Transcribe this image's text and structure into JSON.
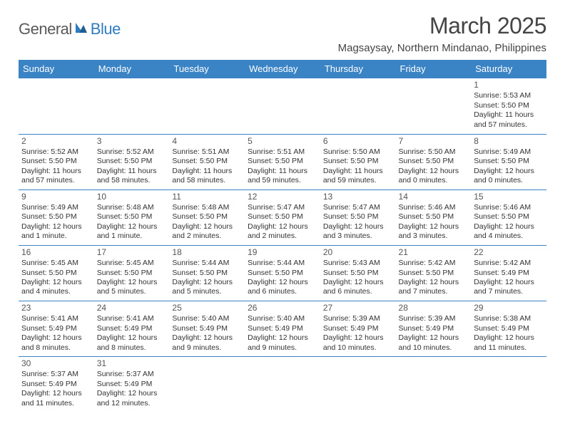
{
  "logo": {
    "part1": "General",
    "part2": "Blue"
  },
  "title": "March 2025",
  "location": "Magsaysay, Northern Mindanao, Philippines",
  "columns": [
    "Sunday",
    "Monday",
    "Tuesday",
    "Wednesday",
    "Thursday",
    "Friday",
    "Saturday"
  ],
  "header_bg": "#3a83c4",
  "cell_border": "#3a83c4",
  "weeks": [
    [
      null,
      null,
      null,
      null,
      null,
      null,
      {
        "n": "1",
        "sr": "5:53 AM",
        "ss": "5:50 PM",
        "dl": "11 hours and 57 minutes."
      }
    ],
    [
      {
        "n": "2",
        "sr": "5:52 AM",
        "ss": "5:50 PM",
        "dl": "11 hours and 57 minutes."
      },
      {
        "n": "3",
        "sr": "5:52 AM",
        "ss": "5:50 PM",
        "dl": "11 hours and 58 minutes."
      },
      {
        "n": "4",
        "sr": "5:51 AM",
        "ss": "5:50 PM",
        "dl": "11 hours and 58 minutes."
      },
      {
        "n": "5",
        "sr": "5:51 AM",
        "ss": "5:50 PM",
        "dl": "11 hours and 59 minutes."
      },
      {
        "n": "6",
        "sr": "5:50 AM",
        "ss": "5:50 PM",
        "dl": "11 hours and 59 minutes."
      },
      {
        "n": "7",
        "sr": "5:50 AM",
        "ss": "5:50 PM",
        "dl": "12 hours and 0 minutes."
      },
      {
        "n": "8",
        "sr": "5:49 AM",
        "ss": "5:50 PM",
        "dl": "12 hours and 0 minutes."
      }
    ],
    [
      {
        "n": "9",
        "sr": "5:49 AM",
        "ss": "5:50 PM",
        "dl": "12 hours and 1 minute."
      },
      {
        "n": "10",
        "sr": "5:48 AM",
        "ss": "5:50 PM",
        "dl": "12 hours and 1 minute."
      },
      {
        "n": "11",
        "sr": "5:48 AM",
        "ss": "5:50 PM",
        "dl": "12 hours and 2 minutes."
      },
      {
        "n": "12",
        "sr": "5:47 AM",
        "ss": "5:50 PM",
        "dl": "12 hours and 2 minutes."
      },
      {
        "n": "13",
        "sr": "5:47 AM",
        "ss": "5:50 PM",
        "dl": "12 hours and 3 minutes."
      },
      {
        "n": "14",
        "sr": "5:46 AM",
        "ss": "5:50 PM",
        "dl": "12 hours and 3 minutes."
      },
      {
        "n": "15",
        "sr": "5:46 AM",
        "ss": "5:50 PM",
        "dl": "12 hours and 4 minutes."
      }
    ],
    [
      {
        "n": "16",
        "sr": "5:45 AM",
        "ss": "5:50 PM",
        "dl": "12 hours and 4 minutes."
      },
      {
        "n": "17",
        "sr": "5:45 AM",
        "ss": "5:50 PM",
        "dl": "12 hours and 5 minutes."
      },
      {
        "n": "18",
        "sr": "5:44 AM",
        "ss": "5:50 PM",
        "dl": "12 hours and 5 minutes."
      },
      {
        "n": "19",
        "sr": "5:44 AM",
        "ss": "5:50 PM",
        "dl": "12 hours and 6 minutes."
      },
      {
        "n": "20",
        "sr": "5:43 AM",
        "ss": "5:50 PM",
        "dl": "12 hours and 6 minutes."
      },
      {
        "n": "21",
        "sr": "5:42 AM",
        "ss": "5:50 PM",
        "dl": "12 hours and 7 minutes."
      },
      {
        "n": "22",
        "sr": "5:42 AM",
        "ss": "5:49 PM",
        "dl": "12 hours and 7 minutes."
      }
    ],
    [
      {
        "n": "23",
        "sr": "5:41 AM",
        "ss": "5:49 PM",
        "dl": "12 hours and 8 minutes."
      },
      {
        "n": "24",
        "sr": "5:41 AM",
        "ss": "5:49 PM",
        "dl": "12 hours and 8 minutes."
      },
      {
        "n": "25",
        "sr": "5:40 AM",
        "ss": "5:49 PM",
        "dl": "12 hours and 9 minutes."
      },
      {
        "n": "26",
        "sr": "5:40 AM",
        "ss": "5:49 PM",
        "dl": "12 hours and 9 minutes."
      },
      {
        "n": "27",
        "sr": "5:39 AM",
        "ss": "5:49 PM",
        "dl": "12 hours and 10 minutes."
      },
      {
        "n": "28",
        "sr": "5:39 AM",
        "ss": "5:49 PM",
        "dl": "12 hours and 10 minutes."
      },
      {
        "n": "29",
        "sr": "5:38 AM",
        "ss": "5:49 PM",
        "dl": "12 hours and 11 minutes."
      }
    ],
    [
      {
        "n": "30",
        "sr": "5:37 AM",
        "ss": "5:49 PM",
        "dl": "12 hours and 11 minutes."
      },
      {
        "n": "31",
        "sr": "5:37 AM",
        "ss": "5:49 PM",
        "dl": "12 hours and 12 minutes."
      },
      null,
      null,
      null,
      null,
      null
    ]
  ],
  "labels": {
    "sunrise": "Sunrise: ",
    "sunset": "Sunset: ",
    "daylight": "Daylight: "
  }
}
